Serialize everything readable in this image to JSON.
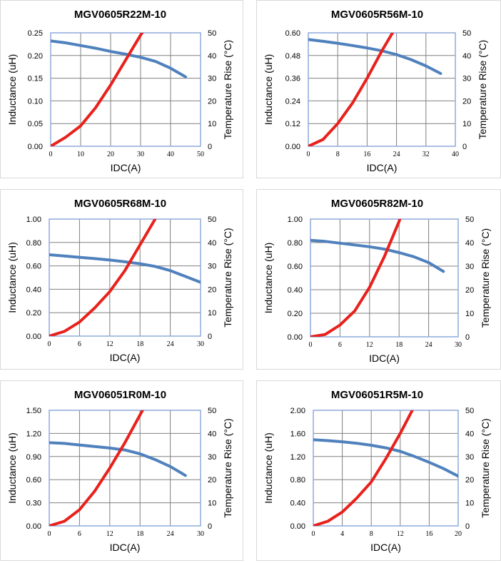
{
  "colors": {
    "inductance": "#4f81bd",
    "temperature": "#e8211c",
    "grid": "#808080",
    "frame": "#8eaadb"
  },
  "chart_data": [
    {
      "type": "line",
      "title": "MGV0605R22M-10",
      "xlabel": "IDC(A)",
      "ylabel": "Inductance (uH)",
      "y2label": "Temperature Rise (°C)",
      "xlim": [
        0,
        50
      ],
      "ylim": [
        0,
        0.25
      ],
      "y2lim": [
        0,
        50
      ],
      "xticks": [
        "0",
        "10",
        "20",
        "30",
        "40",
        "50"
      ],
      "yticks": [
        "0.00",
        "0.05",
        "0.10",
        "0.15",
        "0.20",
        "0.25"
      ],
      "y2ticks": [
        "0",
        "10",
        "20",
        "30",
        "40",
        "50"
      ],
      "grid": true,
      "series": [
        {
          "axis": "left",
          "color": "#4f81bd",
          "x": [
            0,
            5,
            10,
            15,
            20,
            25,
            30,
            35,
            40,
            45
          ],
          "y": [
            0.232,
            0.228,
            0.222,
            0.216,
            0.209,
            0.203,
            0.196,
            0.187,
            0.172,
            0.153
          ]
        },
        {
          "axis": "right",
          "color": "#e8211c",
          "x": [
            0,
            5,
            10,
            15,
            20,
            25,
            30,
            31
          ],
          "y": [
            0,
            4,
            9,
            17,
            27,
            38,
            49,
            51
          ]
        }
      ]
    },
    {
      "type": "line",
      "title": "MGV0605R56M-10",
      "xlabel": "IDC(A)",
      "ylabel": "Inductance (uH)",
      "y2label": "Temperature Rise (°C)",
      "xlim": [
        0,
        40
      ],
      "ylim": [
        0,
        0.6
      ],
      "y2lim": [
        0,
        50
      ],
      "xticks": [
        "0",
        "8",
        "16",
        "24",
        "32",
        "40"
      ],
      "yticks": [
        "0.00",
        "0.12",
        "0.24",
        "0.36",
        "0.48",
        "0.60"
      ],
      "y2ticks": [
        "0",
        "10",
        "20",
        "30",
        "40",
        "50"
      ],
      "grid": true,
      "series": [
        {
          "axis": "left",
          "color": "#4f81bd",
          "x": [
            0,
            4,
            8,
            12,
            16,
            20,
            24,
            28,
            32,
            36
          ],
          "y": [
            0.565,
            0.555,
            0.545,
            0.533,
            0.52,
            0.505,
            0.485,
            0.458,
            0.425,
            0.385
          ]
        },
        {
          "axis": "right",
          "color": "#e8211c",
          "x": [
            0,
            4,
            8,
            12,
            16,
            20,
            24,
            25
          ],
          "y": [
            0,
            3,
            10,
            19,
            30,
            42,
            53,
            56
          ]
        }
      ]
    },
    {
      "type": "line",
      "title": "MGV0605R68M-10",
      "xlabel": "IDC(A)",
      "ylabel": "Inductance (uH)",
      "y2label": "Temperature Rise (°C)",
      "xlim": [
        0,
        30
      ],
      "ylim": [
        0,
        1.0
      ],
      "y2lim": [
        0,
        50
      ],
      "xticks": [
        "0",
        "6",
        "12",
        "18",
        "24",
        "30"
      ],
      "yticks": [
        "0.00",
        "0.20",
        "0.40",
        "0.60",
        "0.80",
        "1.00"
      ],
      "y2ticks": [
        "0",
        "10",
        "20",
        "30",
        "40",
        "50"
      ],
      "grid": true,
      "series": [
        {
          "axis": "left",
          "color": "#4f81bd",
          "x": [
            0,
            3,
            6,
            9,
            12,
            15,
            18,
            21,
            24,
            27,
            30
          ],
          "y": [
            0.695,
            0.684,
            0.673,
            0.662,
            0.65,
            0.635,
            0.618,
            0.595,
            0.56,
            0.51,
            0.46
          ]
        },
        {
          "axis": "right",
          "color": "#e8211c",
          "x": [
            0,
            3,
            6,
            9,
            12,
            15,
            18,
            21
          ],
          "y": [
            0,
            2,
            6,
            12,
            19,
            28,
            39,
            50
          ]
        }
      ]
    },
    {
      "type": "line",
      "title": "MGV0605R82M-10",
      "xlabel": "IDC(A)",
      "ylabel": "Inductance (uH)",
      "y2label": "Temperature Rise (°C)",
      "xlim": [
        0,
        30
      ],
      "ylim": [
        0,
        1.0
      ],
      "y2lim": [
        0,
        50
      ],
      "xticks": [
        "0",
        "6",
        "12",
        "18",
        "24",
        "30"
      ],
      "yticks": [
        "0.00",
        "0.20",
        "0.40",
        "0.60",
        "0.80",
        "1.00"
      ],
      "y2ticks": [
        "0",
        "10",
        "20",
        "30",
        "40",
        "50"
      ],
      "grid": true,
      "series": [
        {
          "axis": "left",
          "color": "#4f81bd",
          "x": [
            0,
            3,
            6,
            9,
            12,
            15,
            18,
            21,
            24,
            27
          ],
          "y": [
            0.82,
            0.81,
            0.795,
            0.78,
            0.765,
            0.745,
            0.715,
            0.68,
            0.63,
            0.555
          ]
        },
        {
          "axis": "right",
          "color": "#e8211c",
          "x": [
            0,
            3,
            6,
            9,
            12,
            15,
            18,
            18.5
          ],
          "y": [
            0,
            1,
            5,
            11,
            21,
            34,
            49,
            52
          ]
        }
      ]
    },
    {
      "type": "line",
      "title": "MGV06051R0M-10",
      "xlabel": "IDC(A)",
      "ylabel": "Inductance (uH)",
      "y2label": "Temperature Rise (°C)",
      "xlim": [
        0,
        30
      ],
      "ylim": [
        0,
        1.5
      ],
      "y2lim": [
        0,
        50
      ],
      "xticks": [
        "0",
        "6",
        "12",
        "18",
        "24",
        "30"
      ],
      "yticks": [
        "0.00",
        "0.30",
        "0.60",
        "0.90",
        "1.20",
        "1.50"
      ],
      "y2ticks": [
        "0",
        "10",
        "20",
        "30",
        "40",
        "50"
      ],
      "grid": true,
      "series": [
        {
          "axis": "left",
          "color": "#4f81bd",
          "x": [
            0,
            3,
            6,
            9,
            12,
            15,
            18,
            21,
            24,
            27
          ],
          "y": [
            1.08,
            1.07,
            1.05,
            1.03,
            1.01,
            0.985,
            0.935,
            0.86,
            0.77,
            0.655
          ]
        },
        {
          "axis": "right",
          "color": "#e8211c",
          "x": [
            0,
            3,
            6,
            9,
            12,
            15,
            18,
            19
          ],
          "y": [
            0,
            2,
            7,
            15,
            25,
            36,
            48,
            52
          ]
        }
      ]
    },
    {
      "type": "line",
      "title": "MGV06051R5M-10",
      "xlabel": "IDC(A)",
      "ylabel": "Inductance (uH)",
      "y2label": "Temperature Rise (°C)",
      "xlim": [
        0,
        20
      ],
      "ylim": [
        0,
        2.0
      ],
      "y2lim": [
        0,
        50
      ],
      "xticks": [
        "0",
        "4",
        "8",
        "12",
        "16",
        "20"
      ],
      "yticks": [
        "0.00",
        "0.40",
        "0.80",
        "1.20",
        "1.60",
        "2.00"
      ],
      "y2ticks": [
        "0",
        "10",
        "20",
        "30",
        "40",
        "50"
      ],
      "grid": true,
      "series": [
        {
          "axis": "left",
          "color": "#4f81bd",
          "x": [
            0,
            2,
            4,
            6,
            8,
            10,
            12,
            14,
            16,
            18,
            20
          ],
          "y": [
            1.49,
            1.475,
            1.455,
            1.43,
            1.395,
            1.35,
            1.29,
            1.2,
            1.1,
            0.99,
            0.86
          ]
        },
        {
          "axis": "right",
          "color": "#e8211c",
          "x": [
            0,
            2,
            4,
            6,
            8,
            10,
            12,
            14
          ],
          "y": [
            0,
            2,
            6,
            12,
            19,
            29,
            40,
            52
          ]
        }
      ]
    }
  ]
}
